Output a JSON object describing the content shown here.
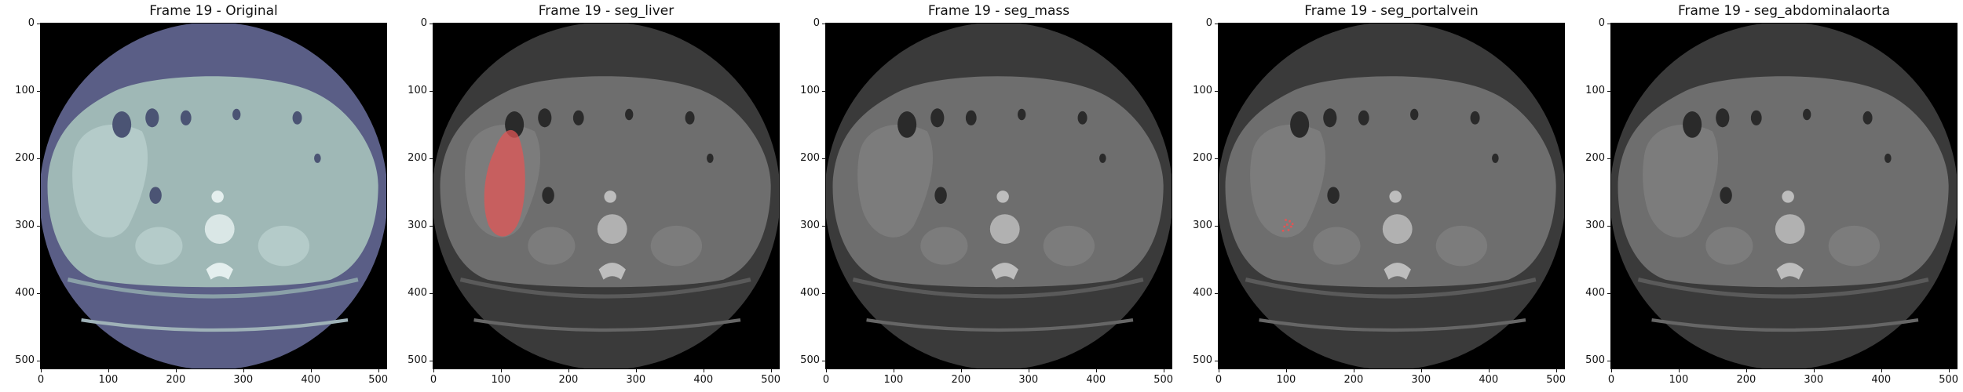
{
  "figure": {
    "panels": [
      {
        "title": "Frame 19 - Original",
        "tint": "original",
        "overlay": "none"
      },
      {
        "title": "Frame 19 - seg_liver",
        "tint": "gray",
        "overlay": "liver"
      },
      {
        "title": "Frame 19 - seg_mass",
        "tint": "gray",
        "overlay": "none"
      },
      {
        "title": "Frame 19 - seg_portalvein",
        "tint": "gray",
        "overlay": "portalvein"
      },
      {
        "title": "Frame 19 - seg_abdominalaorta",
        "tint": "gray",
        "overlay": "none"
      }
    ],
    "x_ticks": [
      "0",
      "100",
      "200",
      "300",
      "400",
      "500"
    ],
    "y_ticks": [
      "0",
      "100",
      "200",
      "300",
      "400",
      "500"
    ],
    "image_extent": [
      0,
      512
    ],
    "colors": {
      "original_body": "#9fb8b6",
      "original_background": "#5a5e86",
      "gray_body": "#6e6e6e",
      "gray_background": "#3a3a3a",
      "overlay": "#e05555"
    }
  }
}
